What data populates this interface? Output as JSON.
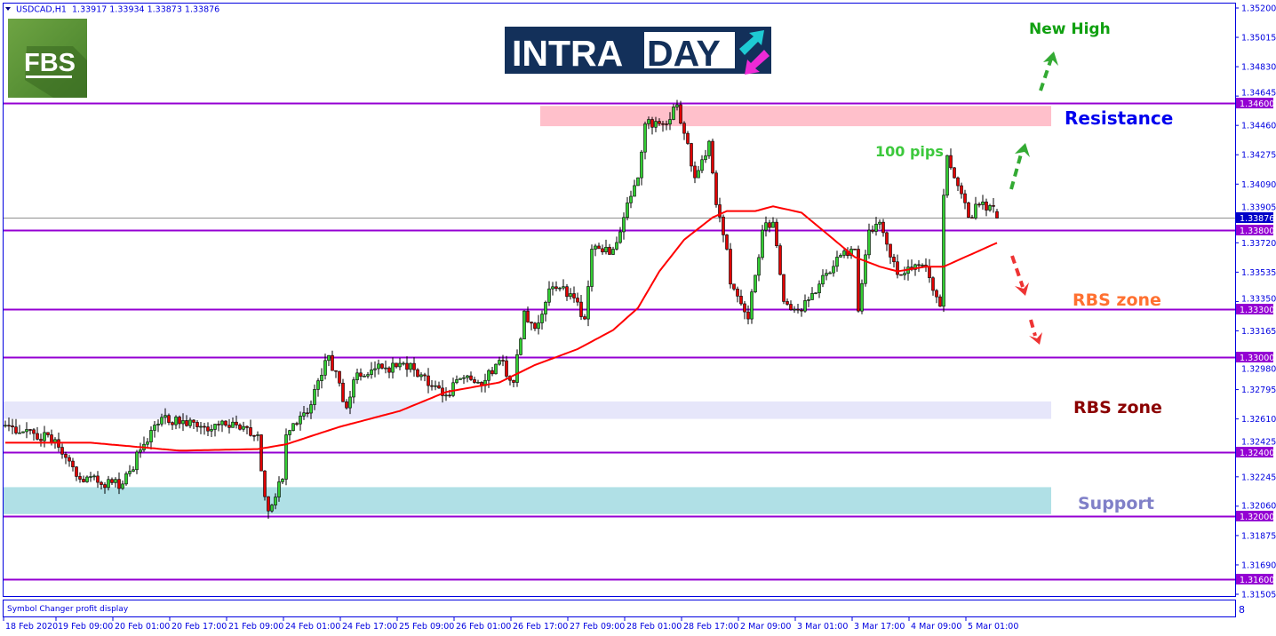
{
  "header": {
    "symbol": "USDCAD,H1",
    "ohlc": "1.33917 1.33934 1.33873 1.33876"
  },
  "logos": {
    "fbs": "FBS",
    "intraday_left": "INTRA",
    "intraday_right": "DAY"
  },
  "indicator_panel": {
    "label": "Symbol Changer profit display",
    "scale_glyph": "8"
  },
  "colors": {
    "axis": "#0000e0",
    "level_line": "#9400d3",
    "bull_candle": "#32cd32",
    "bear_candle": "#e00000",
    "moving_average": "#ff0000",
    "current_price_tag": "#0000c8",
    "resistance_zone": "#ffc0cb",
    "rbs_zone": "#e6e6fa",
    "support_zone": "#b0e0e6"
  },
  "chart_data": {
    "type": "candlestick",
    "symbol": "USDCAD",
    "timeframe": "H1",
    "ylim": [
      1.31505,
      1.352
    ],
    "y_ticks": [
      "1.35200",
      "1.35015",
      "1.34830",
      "1.34645",
      "1.34460",
      "1.34275",
      "1.34090",
      "1.33905",
      "1.33720",
      "1.33535",
      "1.33350",
      "1.33165",
      "1.32980",
      "1.32795",
      "1.32610",
      "1.32425",
      "1.32245",
      "1.32060",
      "1.31875",
      "1.31690",
      "1.31505"
    ],
    "x_ticks": [
      "18 Feb 2020",
      "19 Feb 09:00",
      "20 Feb 01:00",
      "20 Feb 17:00",
      "21 Feb 09:00",
      "24 Feb 01:00",
      "24 Feb 17:00",
      "25 Feb 09:00",
      "26 Feb 01:00",
      "26 Feb 17:00",
      "27 Feb 09:00",
      "28 Feb 01:00",
      "28 Feb 17:00",
      "2 Mar 09:00",
      "3 Mar 01:00",
      "3 Mar 17:00",
      "4 Mar 09:00",
      "5 Mar 01:00"
    ],
    "x_tick_bar_interval": 16,
    "bar_count": 280,
    "close_path": [
      [
        0,
        1.3257
      ],
      [
        14,
        1.3248
      ],
      [
        21,
        1.3223
      ],
      [
        33,
        1.322
      ],
      [
        39,
        1.3245
      ],
      [
        44,
        1.3262
      ],
      [
        56,
        1.3256
      ],
      [
        64,
        1.3259
      ],
      [
        71,
        1.3251
      ],
      [
        73,
        1.3212
      ],
      [
        74,
        1.3203
      ],
      [
        78,
        1.3223
      ],
      [
        79,
        1.3251
      ],
      [
        86,
        1.327
      ],
      [
        91,
        1.3301
      ],
      [
        96,
        1.3268
      ],
      [
        99,
        1.329
      ],
      [
        106,
        1.3293
      ],
      [
        114,
        1.3296
      ],
      [
        119,
        1.3282
      ],
      [
        124,
        1.3276
      ],
      [
        129,
        1.3287
      ],
      [
        134,
        1.3282
      ],
      [
        139,
        1.3298
      ],
      [
        143,
        1.3284
      ],
      [
        146,
        1.3329
      ],
      [
        149,
        1.3318
      ],
      [
        153,
        1.3343
      ],
      [
        159,
        1.334
      ],
      [
        163,
        1.3324
      ],
      [
        165,
        1.3368
      ],
      [
        171,
        1.3368
      ],
      [
        174,
        1.3388
      ],
      [
        178,
        1.3413
      ],
      [
        180,
        1.3447
      ],
      [
        185,
        1.3447
      ],
      [
        189,
        1.3459
      ],
      [
        191,
        1.3441
      ],
      [
        194,
        1.3413
      ],
      [
        198,
        1.3436
      ],
      [
        200,
        1.3396
      ],
      [
        203,
        1.3368
      ],
      [
        204,
        1.3346
      ],
      [
        209,
        1.3324
      ],
      [
        213,
        1.338
      ],
      [
        216,
        1.3385
      ],
      [
        219,
        1.3335
      ],
      [
        224,
        1.3329
      ],
      [
        229,
        1.3346
      ],
      [
        234,
        1.3363
      ],
      [
        239,
        1.3368
      ],
      [
        240,
        1.3329
      ],
      [
        243,
        1.338
      ],
      [
        246,
        1.3385
      ],
      [
        249,
        1.3363
      ],
      [
        251,
        1.3352
      ],
      [
        259,
        1.3357
      ],
      [
        263,
        1.3332
      ],
      [
        264,
        1.3402
      ],
      [
        265,
        1.3427
      ],
      [
        268,
        1.3408
      ],
      [
        271,
        1.3388
      ],
      [
        274,
        1.3396
      ],
      [
        278,
        1.3395
      ],
      [
        279,
        1.33876
      ]
    ],
    "last_bar": {
      "open": 1.33917,
      "high": 1.33934,
      "low": 1.33873,
      "close": 1.33876
    },
    "moving_average": [
      [
        0,
        1.3246
      ],
      [
        24,
        1.3246
      ],
      [
        49,
        1.3241
      ],
      [
        71,
        1.3242
      ],
      [
        79,
        1.3245
      ],
      [
        94,
        1.3256
      ],
      [
        111,
        1.3266
      ],
      [
        124,
        1.3278
      ],
      [
        139,
        1.3284
      ],
      [
        149,
        1.3295
      ],
      [
        161,
        1.3305
      ],
      [
        171,
        1.3317
      ],
      [
        178,
        1.3331
      ],
      [
        184,
        1.3354
      ],
      [
        191,
        1.3374
      ],
      [
        199,
        1.3388
      ],
      [
        203,
        1.3392
      ],
      [
        211,
        1.3392
      ],
      [
        216,
        1.3395
      ],
      [
        224,
        1.3391
      ],
      [
        231,
        1.3378
      ],
      [
        239,
        1.3363
      ],
      [
        246,
        1.3357
      ],
      [
        251,
        1.3354
      ],
      [
        259,
        1.3357
      ],
      [
        264,
        1.3357
      ],
      [
        269,
        1.3362
      ],
      [
        274,
        1.3367
      ],
      [
        279,
        1.3372
      ]
    ],
    "levels": [
      {
        "price": 1.346,
        "label": "1.34600"
      },
      {
        "price": 1.338,
        "label": "1.33800"
      },
      {
        "price": 1.333,
        "label": "1.33300"
      },
      {
        "price": 1.33,
        "label": "1.33000"
      },
      {
        "price": 1.324,
        "label": "1.32400"
      },
      {
        "price": 1.32,
        "label": "1.32000"
      },
      {
        "price": 1.316,
        "label": "1.31600"
      }
    ],
    "current_price": {
      "price": 1.33876,
      "label": "1.33876"
    },
    "zones": [
      {
        "name": "resistance",
        "from": 1.34455,
        "to": 1.34583,
        "start_bar": 151
      },
      {
        "name": "rbs",
        "from": 1.3261,
        "to": 1.3272,
        "start_bar": 0
      },
      {
        "name": "support",
        "from": 1.3201,
        "to": 1.3218,
        "start_bar": 0
      }
    ],
    "annotations": {
      "new_high": "New High",
      "resistance": "Resistance",
      "pips": "100 pips",
      "rbs_upper": "RBS zone",
      "rbs_lower": "RBS zone",
      "support": "Support"
    },
    "annotation_colors": {
      "new_high": "#10a010",
      "resistance": "#0000ee",
      "pips": "#3cc83c",
      "rbs_upper": "#ff7030",
      "rbs_lower": "#8b0000",
      "support": "#8080c8"
    }
  }
}
